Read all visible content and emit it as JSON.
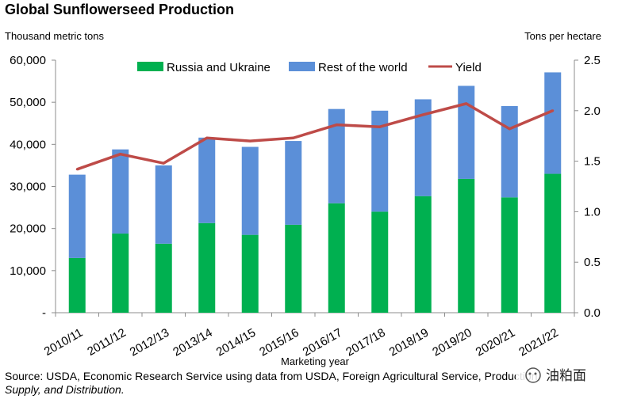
{
  "chart_data": {
    "type": "bar",
    "title": "Global Sunflowerseed Production",
    "ylabel_left": "Thousand metric tons",
    "ylabel_right": "Tons per hectare",
    "xlabel": "Marketing year",
    "categories": [
      "2010/11",
      "2011/12",
      "2012/13",
      "2013/14",
      "2014/15",
      "2015/16",
      "2016/17",
      "2017/18",
      "2018/19",
      "2019/20",
      "2020/21",
      "2021/22"
    ],
    "series": [
      {
        "name": "Russia and Ukraine",
        "kind": "bar",
        "stack": "production",
        "color": "#00b050",
        "values": [
          13000,
          18800,
          16400,
          21300,
          18500,
          20900,
          26000,
          24000,
          27700,
          31800,
          27400,
          33000
        ]
      },
      {
        "name": "Rest of the world",
        "kind": "bar",
        "stack": "production",
        "color": "#5b8fd8",
        "values": [
          19800,
          20000,
          18600,
          20300,
          20900,
          19900,
          22400,
          24000,
          23000,
          22100,
          21700,
          24100
        ]
      },
      {
        "name": "Yield",
        "kind": "line",
        "axis": "right",
        "color": "#be4b48",
        "values": [
          1.42,
          1.57,
          1.48,
          1.73,
          1.7,
          1.73,
          1.86,
          1.84,
          1.96,
          2.07,
          1.82,
          2.0
        ]
      }
    ],
    "ylim_left": [
      0,
      60000
    ],
    "ylim_right": [
      0.0,
      2.5
    ],
    "yticks_left": [
      "-",
      "10,000",
      "20,000",
      "30,000",
      "40,000",
      "50,000",
      "60,000"
    ],
    "yticks_right": [
      "0.0",
      "0.5",
      "1.0",
      "1.5",
      "2.0",
      "2.5"
    ],
    "legend_position": "top",
    "grid": false
  },
  "source_lines": [
    "Source: USDA, Economic Research Service using data from USDA, Foreign Agricultural Service, Production,",
    "Supply, and Distribution."
  ],
  "watermark": "油粕面"
}
